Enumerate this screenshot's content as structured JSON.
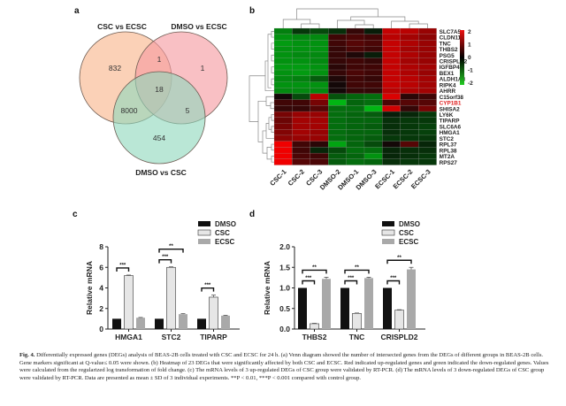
{
  "figure": {
    "panels": {
      "a": "a",
      "b": "b",
      "c": "c",
      "d": "d"
    },
    "caption_label": "Fig. 4.",
    "caption_text": "Differentially expressed genes (DEGs) analysis of BEAS-2B cells treated with CSC and ECSC for 24 h. (a) Venn diagram showed the number of intersected genes from the DEGs of different groups in BEAS-2B cells. Gene markers significant at Q-value≤ 0.05 were shown. (b) Heatmap of 23 DEGs that were significantly affected by both CSC and ECSC. Red indicated up-regulated genes and green indicated the down-regulated genes. Values were calculated from the regularized log transformation of fold change. (c) The mRNA levels of 3 up-regulated DEGs of CSC group were validated by RT-PCR. (d) The mRNA levels of 3 down-regulated DEGs of CSC group were validated by RT-PCR. Data are presented as mean ± SD of 3 individual experiments. **P < 0.01, ***P < 0.001 compared with control group."
  },
  "chart_data": [
    {
      "type": "venn",
      "panel": "a",
      "sets": [
        "CSC vs ECSC",
        "DMSO vs ECSC",
        "DMSO vs CSC"
      ],
      "colors": [
        "#f9b48a",
        "#f59aa0",
        "#8fd8bd"
      ],
      "regions": {
        "CSC vs ECSC only": 832,
        "DMSO vs ECSC only": 1,
        "DMSO vs CSC only": 454,
        "CSC vs ECSC & DMSO vs ECSC": 1,
        "CSC vs ECSC & DMSO vs CSC": 8000,
        "DMSO vs ECSC & DMSO vs CSC": 5,
        "all three": 18
      }
    },
    {
      "type": "heatmap",
      "panel": "b",
      "columns": [
        "CSC-1",
        "CSC-2",
        "CSC-3",
        "DMSO-2",
        "DMSO-1",
        "DMSO-3",
        "ECSC-1",
        "ECSC-2",
        "ECSC-3"
      ],
      "rows": [
        "SLC7A5",
        "CLDN11",
        "TNC",
        "THBS2",
        "PSG5",
        "CRISPLD2",
        "IGFBP4",
        "BEX1",
        "ALDH1A3",
        "RIPK4",
        "AHRR",
        "C15orf38",
        "CYP1B1",
        "SHISA2",
        "LY6K",
        "TIPARP",
        "SLC6A6",
        "HMGA1",
        "STC2",
        "RPL37",
        "RPL38",
        "MT2A",
        "RPS27"
      ],
      "highlight_row": "CYP1B1",
      "highlight_color": "#e02020",
      "colorbar": {
        "min": -2,
        "max": 2,
        "ticks": [
          "2",
          "1",
          "0",
          "-1",
          "-2"
        ],
        "low_color": "#22cc22",
        "mid_color": "#000000",
        "high_color": "#ee1111"
      },
      "values": [
        [
          -1.2,
          -0.4,
          -0.6,
          -0.3,
          0.3,
          -0.1,
          1.6,
          1.5,
          1.2
        ],
        [
          -1.4,
          -1.3,
          -1.3,
          0.4,
          0.5,
          0.4,
          1.5,
          1.3,
          1.1
        ],
        [
          -1.5,
          -1.4,
          -1.4,
          0.4,
          0.6,
          0.5,
          1.6,
          1.4,
          1.2
        ],
        [
          -1.4,
          -1.4,
          -1.4,
          0.3,
          0.5,
          0.4,
          1.6,
          1.3,
          1.2
        ],
        [
          -1.4,
          -1.3,
          -1.3,
          0.3,
          0.1,
          -0.1,
          1.6,
          1.4,
          1.2
        ],
        [
          -1.4,
          -1.4,
          -1.3,
          0.3,
          0.4,
          0.3,
          1.6,
          1.3,
          1.2
        ],
        [
          -1.5,
          -1.5,
          -1.4,
          0.2,
          0.4,
          0.4,
          1.6,
          1.4,
          1.3
        ],
        [
          -1.4,
          -1.5,
          -1.4,
          0.3,
          0.5,
          0.4,
          1.6,
          1.4,
          1.2
        ],
        [
          -1.3,
          -1.2,
          -0.8,
          0.1,
          0.4,
          0.3,
          1.6,
          1.5,
          1.3
        ],
        [
          -1.4,
          -1.4,
          -1.4,
          0.0,
          0.4,
          0.4,
          1.6,
          1.5,
          1.3
        ],
        [
          -1.3,
          -1.3,
          -1.3,
          0.0,
          0.3,
          0.3,
          1.5,
          1.4,
          1.3
        ],
        [
          0.0,
          -0.6,
          1.5,
          -0.7,
          -0.9,
          -1.0,
          1.8,
          0.2,
          0.4
        ],
        [
          0.4,
          0.4,
          0.9,
          -1.8,
          -0.9,
          -1.0,
          0.5,
          0.6,
          0.6
        ],
        [
          0.3,
          0.3,
          0.6,
          -1.0,
          -1.0,
          -1.8,
          1.7,
          0.3,
          0.9
        ],
        [
          0.9,
          1.2,
          1.2,
          -1.0,
          -0.9,
          -0.8,
          -0.1,
          -0.2,
          -0.4
        ],
        [
          0.8,
          1.3,
          1.3,
          -1.0,
          -0.9,
          -0.9,
          -0.3,
          -0.4,
          -0.4
        ],
        [
          0.9,
          1.3,
          1.3,
          -1.0,
          -0.9,
          -0.8,
          -0.3,
          -0.4,
          -0.5
        ],
        [
          1.0,
          1.3,
          1.2,
          -1.0,
          -0.9,
          -0.9,
          -0.3,
          -0.4,
          -0.5
        ],
        [
          1.1,
          1.2,
          1.2,
          -1.0,
          -0.9,
          -0.8,
          -0.4,
          -0.4,
          -0.4
        ],
        [
          2.0,
          0.4,
          0.2,
          -1.6,
          -0.9,
          -0.6,
          0.0,
          0.6,
          -0.2
        ],
        [
          2.0,
          0.4,
          -0.2,
          -0.6,
          -1.0,
          -1.0,
          -0.2,
          -0.3,
          -0.3
        ],
        [
          2.0,
          0.5,
          0.4,
          -0.8,
          -0.9,
          -1.4,
          -0.2,
          -0.3,
          -0.4
        ],
        [
          2.0,
          0.6,
          0.5,
          -0.8,
          -1.0,
          -0.9,
          -0.3,
          -0.4,
          -0.4
        ]
      ]
    },
    {
      "type": "bar",
      "panel": "c",
      "ylabel": "Relative mRNA",
      "ylim": [
        0,
        8
      ],
      "yticks": [
        "0",
        "2",
        "4",
        "6",
        "8"
      ],
      "categories": [
        "HMGA1",
        "STC2",
        "TIPARP"
      ],
      "series": [
        {
          "name": "DMSO",
          "color": "#111111",
          "values": [
            1.0,
            1.0,
            1.0
          ],
          "errors": [
            0,
            0,
            0
          ]
        },
        {
          "name": "CSC",
          "color": "#e6e6e6",
          "values": [
            5.2,
            6.0,
            3.1
          ],
          "errors": [
            0.05,
            0.05,
            0.2
          ]
        },
        {
          "name": "ECSC",
          "color": "#a9a9a9",
          "values": [
            1.1,
            1.45,
            1.3
          ],
          "errors": [
            0.03,
            0.05,
            0.04
          ]
        }
      ],
      "significance": [
        {
          "category": 0,
          "pair": [
            "DMSO",
            "CSC"
          ],
          "label": "***",
          "level": 1
        },
        {
          "category": 1,
          "pair": [
            "DMSO",
            "CSC"
          ],
          "label": "***",
          "level": 1
        },
        {
          "category": 1,
          "pair": [
            "DMSO",
            "ECSC"
          ],
          "label": "**",
          "level": 2
        },
        {
          "category": 2,
          "pair": [
            "DMSO",
            "CSC"
          ],
          "label": "***",
          "level": 1
        }
      ],
      "legend": [
        "DMSO",
        "CSC",
        "ECSC"
      ],
      "legend_position": "top-right"
    },
    {
      "type": "bar",
      "panel": "d",
      "ylabel": "Relative mRNA",
      "ylim": [
        0,
        2.0
      ],
      "yticks": [
        "0.0",
        "0.5",
        "1.0",
        "1.5",
        "2.0"
      ],
      "categories": [
        "THBS2",
        "TNC",
        "CRISPLD2"
      ],
      "series": [
        {
          "name": "DMSO",
          "color": "#111111",
          "values": [
            1.0,
            1.0,
            1.0
          ],
          "errors": [
            0,
            0,
            0
          ]
        },
        {
          "name": "CSC",
          "color": "#e6e6e6",
          "values": [
            0.13,
            0.38,
            0.46
          ],
          "errors": [
            0.01,
            0.01,
            0.01
          ]
        },
        {
          "name": "ECSC",
          "color": "#a9a9a9",
          "values": [
            1.22,
            1.24,
            1.45
          ],
          "errors": [
            0.04,
            0.02,
            0.05
          ]
        }
      ],
      "significance": [
        {
          "category": 0,
          "pair": [
            "DMSO",
            "CSC"
          ],
          "label": "***",
          "level": 1
        },
        {
          "category": 0,
          "pair": [
            "DMSO",
            "ECSC"
          ],
          "label": "**",
          "level": 2
        },
        {
          "category": 1,
          "pair": [
            "DMSO",
            "CSC"
          ],
          "label": "***",
          "level": 1
        },
        {
          "category": 1,
          "pair": [
            "DMSO",
            "ECSC"
          ],
          "label": "**",
          "level": 2
        },
        {
          "category": 2,
          "pair": [
            "DMSO",
            "CSC"
          ],
          "label": "***",
          "level": 1
        },
        {
          "category": 2,
          "pair": [
            "DMSO",
            "ECSC"
          ],
          "label": "**",
          "level": 2
        }
      ],
      "legend": [
        "DMSO",
        "CSC",
        "ECSC"
      ],
      "legend_position": "top-right"
    }
  ]
}
